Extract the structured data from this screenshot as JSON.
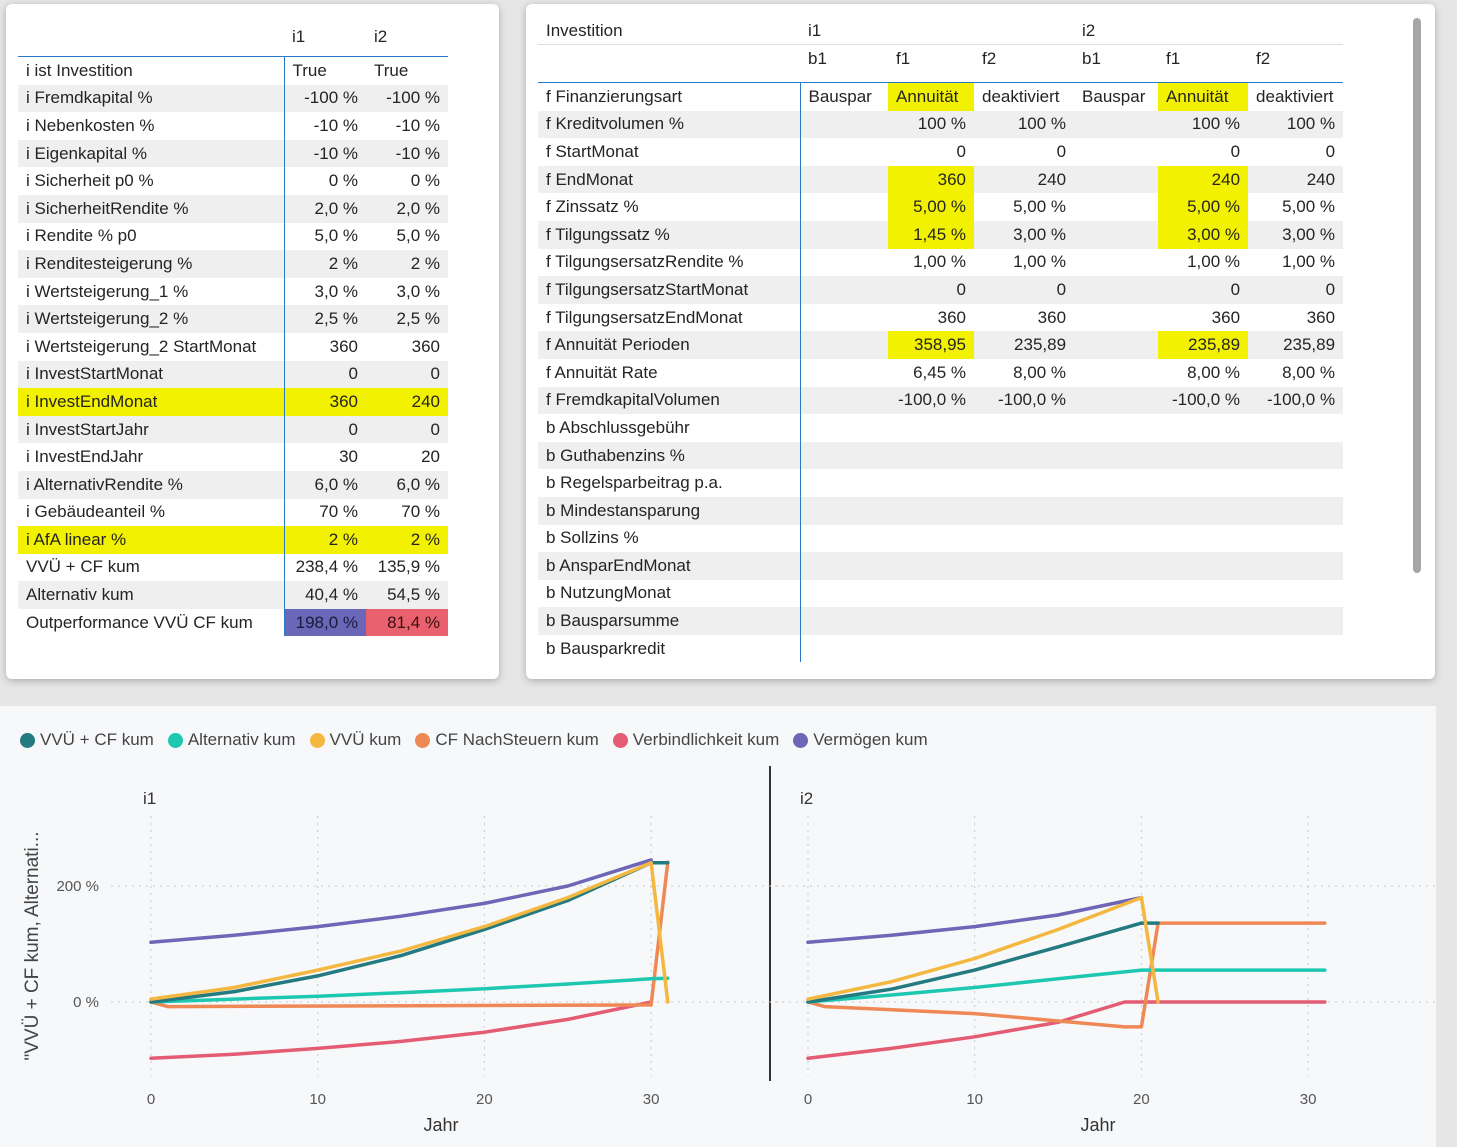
{
  "left_table": {
    "col_headers": [
      "i1",
      "i2"
    ],
    "rows": [
      {
        "label": "i ist Investition",
        "v1": "True",
        "v2": "True",
        "hl": false
      },
      {
        "label": "i Fremdkapital %",
        "v1": "-100 %",
        "v2": "-100 %",
        "hl": false
      },
      {
        "label": "i Nebenkosten %",
        "v1": "-10 %",
        "v2": "-10 %",
        "hl": false
      },
      {
        "label": "i Eigenkapital %",
        "v1": "-10 %",
        "v2": "-10 %",
        "hl": false
      },
      {
        "label": "i Sicherheit p0 %",
        "v1": "0 %",
        "v2": "0 %",
        "hl": false
      },
      {
        "label": "i SicherheitRendite %",
        "v1": "2,0 %",
        "v2": "2,0 %",
        "hl": false
      },
      {
        "label": "i Rendite % p0",
        "v1": "5,0 %",
        "v2": "5,0 %",
        "hl": false
      },
      {
        "label": "i Renditesteigerung %",
        "v1": "2 %",
        "v2": "2 %",
        "hl": false
      },
      {
        "label": "i Wertsteigerung_1 %",
        "v1": "3,0 %",
        "v2": "3,0 %",
        "hl": false
      },
      {
        "label": "i Wertsteigerung_2 %",
        "v1": "2,5 %",
        "v2": "2,5 %",
        "hl": false
      },
      {
        "label": "i Wertsteigerung_2 StartMonat",
        "v1": "360",
        "v2": "360",
        "hl": false
      },
      {
        "label": "i InvestStartMonat",
        "v1": "0",
        "v2": "0",
        "hl": false
      },
      {
        "label": "i InvestEndMonat",
        "v1": "360",
        "v2": "240",
        "hl": true
      },
      {
        "label": "i InvestStartJahr",
        "v1": "0",
        "v2": "0",
        "hl": false
      },
      {
        "label": "i InvestEndJahr",
        "v1": "30",
        "v2": "20",
        "hl": false
      },
      {
        "label": "i AlternativRendite %",
        "v1": "6,0 %",
        "v2": "6,0 %",
        "hl": false
      },
      {
        "label": "i Gebäudeanteil %",
        "v1": "70 %",
        "v2": "70 %",
        "hl": false
      },
      {
        "label": "i AfA linear %",
        "v1": "2 %",
        "v2": "2 %",
        "hl": true
      },
      {
        "label": "VVÜ + CF kum",
        "v1": "238,4 %",
        "v2": "135,9 %",
        "hl": false
      },
      {
        "label": "Alternativ kum",
        "v1": "40,4 %",
        "v2": "54,5 %",
        "hl": false
      },
      {
        "label": "Outperformance VVÜ CF kum",
        "v1": "198,0 %",
        "v2": "81,4 %",
        "hl": false,
        "cf": true
      }
    ],
    "cf_colors": {
      "i1": "#6a66b8",
      "i2": "#e9606f"
    }
  },
  "right_table": {
    "header_label": "Investition",
    "groups": [
      "i1",
      "i2"
    ],
    "subcols": [
      "b1",
      "f1",
      "f2",
      "b1",
      "f1",
      "f2"
    ],
    "rows": [
      {
        "label": "f Finanzierungsart",
        "c": [
          "Bauspar",
          "Annuität",
          "deaktiviert",
          "Bauspar",
          "Annuität",
          "deaktiviert"
        ],
        "hl": [
          1,
          4
        ],
        "text": true
      },
      {
        "label": "f Kreditvolumen %",
        "c": [
          "",
          "100 %",
          "100 %",
          "",
          "100 %",
          "100 %"
        ],
        "hl": []
      },
      {
        "label": "f StartMonat",
        "c": [
          "",
          "0",
          "0",
          "",
          "0",
          "0"
        ],
        "hl": []
      },
      {
        "label": "f EndMonat",
        "c": [
          "",
          "360",
          "240",
          "",
          "240",
          "240"
        ],
        "hl": [
          1,
          4
        ]
      },
      {
        "label": "f Zinssatz %",
        "c": [
          "",
          "5,00 %",
          "5,00 %",
          "",
          "5,00 %",
          "5,00 %"
        ],
        "hl": [
          1,
          4
        ]
      },
      {
        "label": "f Tilgungssatz %",
        "c": [
          "",
          "1,45 %",
          "3,00 %",
          "",
          "3,00 %",
          "3,00 %"
        ],
        "hl": [
          1,
          4
        ]
      },
      {
        "label": "f TilgungsersatzRendite %",
        "c": [
          "",
          "1,00 %",
          "1,00 %",
          "",
          "1,00 %",
          "1,00 %"
        ],
        "hl": []
      },
      {
        "label": "f TilgungsersatzStartMonat",
        "c": [
          "",
          "0",
          "0",
          "",
          "0",
          "0"
        ],
        "hl": []
      },
      {
        "label": "f TilgungsersatzEndMonat",
        "c": [
          "",
          "360",
          "360",
          "",
          "360",
          "360"
        ],
        "hl": []
      },
      {
        "label": "f Annuität Perioden",
        "c": [
          "",
          "358,95",
          "235,89",
          "",
          "235,89",
          "235,89"
        ],
        "hl": [
          1,
          4
        ]
      },
      {
        "label": "f Annuität Rate",
        "c": [
          "",
          "6,45 %",
          "8,00 %",
          "",
          "8,00 %",
          "8,00 %"
        ],
        "hl": []
      },
      {
        "label": "f FremdkapitalVolumen",
        "c": [
          "",
          "-100,0 %",
          "-100,0 %",
          "",
          "-100,0 %",
          "-100,0 %"
        ],
        "hl": []
      },
      {
        "label": "b Abschlussgebühr",
        "c": [
          "",
          "",
          "",
          "",
          "",
          ""
        ],
        "hl": []
      },
      {
        "label": "b Guthabenzins %",
        "c": [
          "",
          "",
          "",
          "",
          "",
          ""
        ],
        "hl": []
      },
      {
        "label": "b Regelsparbeitrag p.a.",
        "c": [
          "",
          "",
          "",
          "",
          "",
          ""
        ],
        "hl": []
      },
      {
        "label": "b Mindestansparung",
        "c": [
          "",
          "",
          "",
          "",
          "",
          ""
        ],
        "hl": []
      },
      {
        "label": "b Sollzins %",
        "c": [
          "",
          "",
          "",
          "",
          "",
          ""
        ],
        "hl": []
      },
      {
        "label": "b AnsparEndMonat",
        "c": [
          "",
          "",
          "",
          "",
          "",
          ""
        ],
        "hl": []
      },
      {
        "label": "b NutzungMonat",
        "c": [
          "",
          "",
          "",
          "",
          "",
          ""
        ],
        "hl": []
      },
      {
        "label": "b Bausparsumme",
        "c": [
          "",
          "",
          "",
          "",
          "",
          ""
        ],
        "hl": []
      },
      {
        "label": "b Bausparkredit",
        "c": [
          "",
          "",
          "",
          "",
          "",
          ""
        ],
        "hl": []
      }
    ]
  },
  "chart_data": {
    "type": "line",
    "ylabel": "\"VVÜ + CF kum, Alternati...",
    "xlabel": "Jahr",
    "ylim": [
      -120,
      280
    ],
    "y_ticks": [
      {
        "v": 0,
        "label": "0 %"
      },
      {
        "v": 200,
        "label": "200 %"
      }
    ],
    "x_ticks": [
      0,
      10,
      20,
      30
    ],
    "legend": [
      {
        "name": "VVÜ + CF kum",
        "color": "#237a80"
      },
      {
        "name": "Alternativ kum",
        "color": "#1ec8b0"
      },
      {
        "name": "VVÜ kum",
        "color": "#f4b73f"
      },
      {
        "name": "CF NachSteuern kum",
        "color": "#ee8855"
      },
      {
        "name": "Verbindlichkeit kum",
        "color": "#e45c74"
      },
      {
        "name": "Vermögen kum",
        "color": "#6e66b6"
      }
    ],
    "panels": [
      {
        "title": "i1",
        "xlim": [
          0,
          35
        ],
        "series": [
          {
            "name": "Vermögen kum",
            "color": "#6e66b6",
            "points": [
              [
                0,
                103
              ],
              [
                5,
                115
              ],
              [
                10,
                130
              ],
              [
                15,
                148
              ],
              [
                20,
                170
              ],
              [
                25,
                200
              ],
              [
                30,
                245
              ]
            ]
          },
          {
            "name": "Verbindlichkeit kum",
            "color": "#e45c74",
            "points": [
              [
                0,
                -97
              ],
              [
                5,
                -90
              ],
              [
                10,
                -80
              ],
              [
                15,
                -68
              ],
              [
                20,
                -52
              ],
              [
                25,
                -30
              ],
              [
                30,
                0
              ]
            ]
          },
          {
            "name": "CF NachSteuern kum",
            "color": "#ee8855",
            "points": [
              [
                0,
                0
              ],
              [
                1,
                -8
              ],
              [
                30,
                -5
              ],
              [
                31,
                241
              ],
              [
                31,
                241
              ]
            ]
          },
          {
            "name": "Alternativ kum",
            "color": "#1ec8b0",
            "points": [
              [
                0,
                0
              ],
              [
                5,
                5
              ],
              [
                10,
                10
              ],
              [
                15,
                16
              ],
              [
                20,
                23
              ],
              [
                25,
                31
              ],
              [
                30,
                40
              ],
              [
                31,
                41
              ]
            ]
          },
          {
            "name": "VVÜ + CF kum",
            "color": "#237a80",
            "points": [
              [
                0,
                0
              ],
              [
                5,
                18
              ],
              [
                10,
                45
              ],
              [
                15,
                80
              ],
              [
                20,
                125
              ],
              [
                25,
                175
              ],
              [
                30,
                240
              ],
              [
                31,
                240
              ]
            ]
          },
          {
            "name": "VVÜ kum",
            "color": "#f4b73f",
            "points": [
              [
                0,
                5
              ],
              [
                5,
                25
              ],
              [
                10,
                55
              ],
              [
                15,
                88
              ],
              [
                20,
                130
              ],
              [
                25,
                180
              ],
              [
                30,
                240
              ],
              [
                31,
                0
              ]
            ]
          }
        ]
      },
      {
        "title": "i2",
        "xlim": [
          0,
          35
        ],
        "series": [
          {
            "name": "Vermögen kum",
            "color": "#6e66b6",
            "points": [
              [
                0,
                103
              ],
              [
                5,
                115
              ],
              [
                10,
                130
              ],
              [
                15,
                150
              ],
              [
                20,
                180
              ]
            ]
          },
          {
            "name": "Verbindlichkeit kum",
            "color": "#e45c74",
            "points": [
              [
                0,
                -97
              ],
              [
                5,
                -80
              ],
              [
                10,
                -60
              ],
              [
                15,
                -35
              ],
              [
                19,
                0
              ],
              [
                20,
                0
              ],
              [
                31,
                0
              ]
            ]
          },
          {
            "name": "CF NachSteuern kum",
            "color": "#ee8855",
            "points": [
              [
                0,
                0
              ],
              [
                1,
                -8
              ],
              [
                10,
                -20
              ],
              [
                19,
                -43
              ],
              [
                20,
                -43
              ],
              [
                21,
                136
              ],
              [
                31,
                136
              ]
            ]
          },
          {
            "name": "Alternativ kum",
            "color": "#1ec8b0",
            "points": [
              [
                0,
                0
              ],
              [
                5,
                12
              ],
              [
                10,
                25
              ],
              [
                15,
                40
              ],
              [
                20,
                55
              ],
              [
                31,
                55
              ]
            ]
          },
          {
            "name": "VVÜ + CF kum",
            "color": "#237a80",
            "points": [
              [
                0,
                0
              ],
              [
                5,
                22
              ],
              [
                10,
                55
              ],
              [
                15,
                95
              ],
              [
                20,
                136
              ],
              [
                21,
                136
              ]
            ]
          },
          {
            "name": "VVÜ kum",
            "color": "#f4b73f",
            "points": [
              [
                0,
                5
              ],
              [
                5,
                35
              ],
              [
                10,
                75
              ],
              [
                15,
                125
              ],
              [
                20,
                180
              ],
              [
                21,
                0
              ]
            ]
          }
        ]
      }
    ]
  }
}
